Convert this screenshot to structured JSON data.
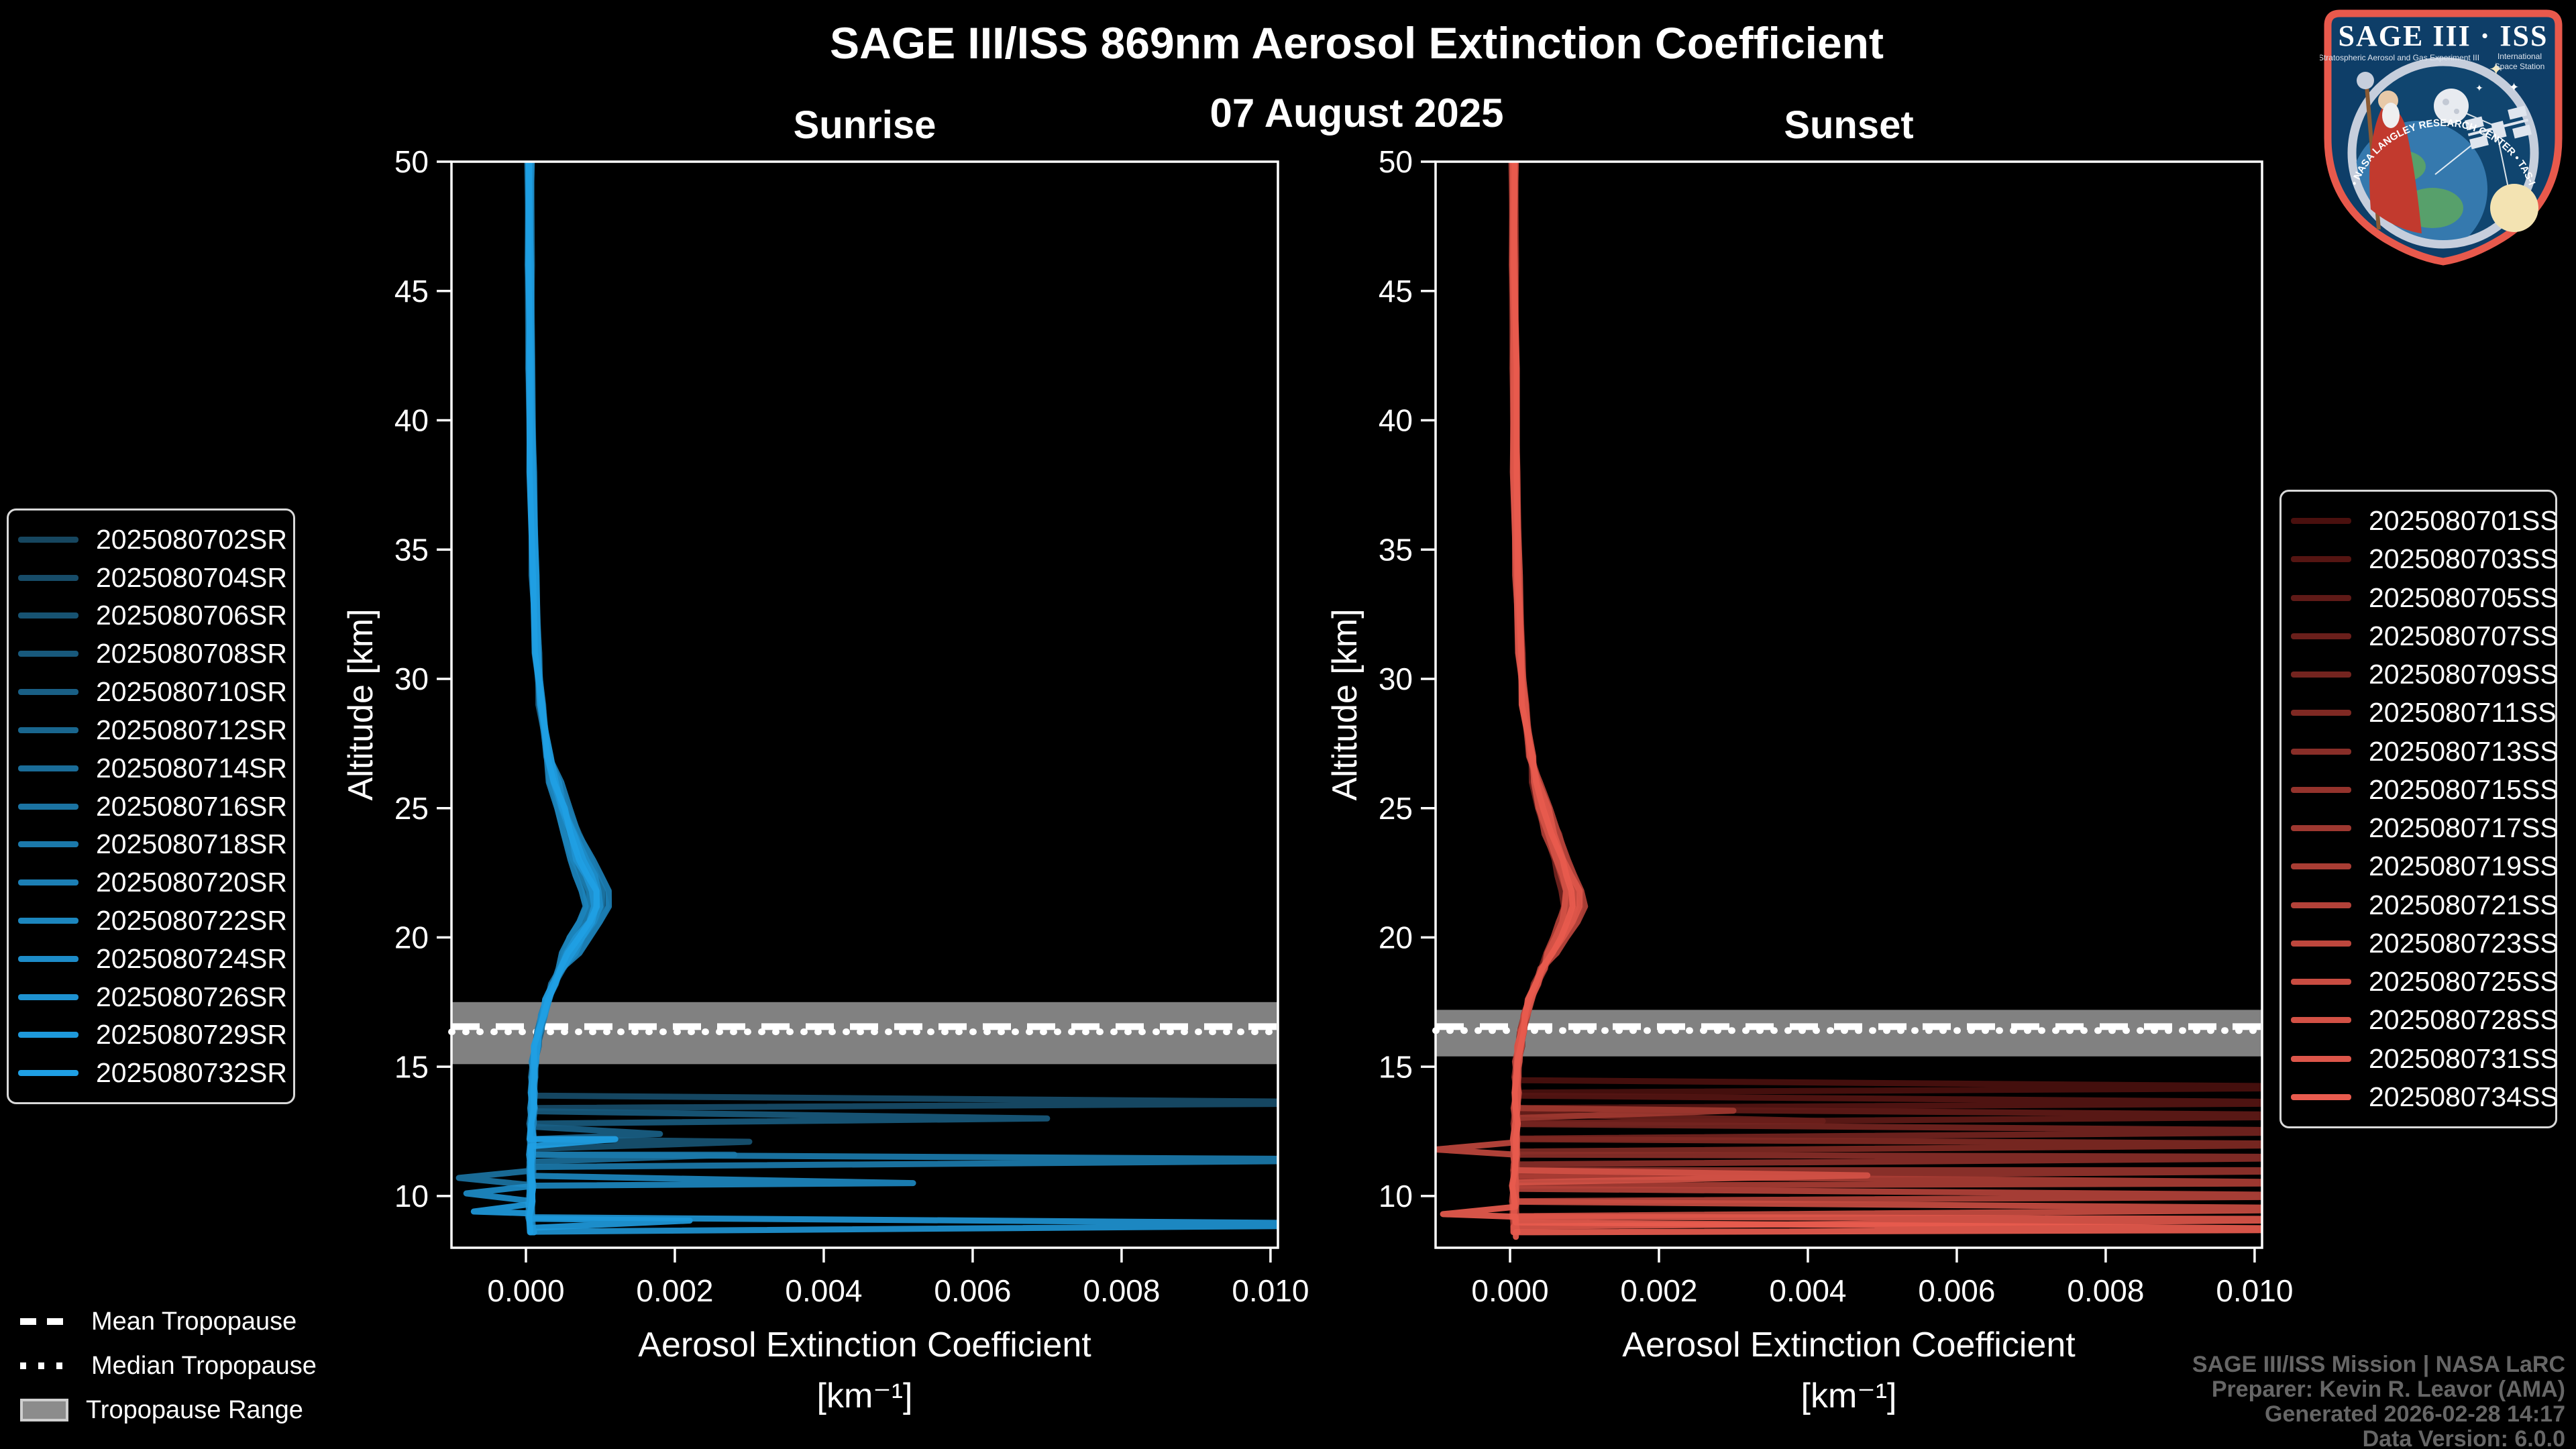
{
  "header": {
    "title": "SAGE III/ISS 869nm Aerosol Extinction Coefficient",
    "date": "07 August 2025"
  },
  "attribution": {
    "line1": "SAGE III/ISS Mission | NASA LaRC",
    "line2": "Preparer: Kevin R. Leavor (AMA)",
    "line3": "Generated 2026-02-28 14:17",
    "line4": "Data Version: 6.0.0"
  },
  "tropopause_legend": {
    "mean": "Mean Tropopause",
    "median": "Median Tropopause",
    "range": "Tropopause Range"
  },
  "logo": {
    "title": "SAGE III · ISS",
    "subtitle_left": "Stratospheric Aerosol and Gas Experiment III",
    "subtitle_right_1": "International",
    "subtitle_right_2": "Space Station",
    "ring_text": "BALL • NASA LANGLEY RESEARCH CENTER • TAS-I • ESA"
  },
  "chart_data": {
    "type": "line",
    "title": "SAGE III/ISS 869nm Aerosol Extinction Coefficient",
    "subtitle": "07 August 2025",
    "xlabel": "Aerosol Extinction Coefficient",
    "xlabel_units": "[km⁻¹]",
    "ylabel": "Altitude [km]",
    "xlim": [
      -0.001,
      0.0101
    ],
    "ylim": [
      8,
      50
    ],
    "xticks": {
      "values": [
        0,
        0.002,
        0.004,
        0.006,
        0.008,
        0.01
      ],
      "labels": [
        "0.000",
        "0.002",
        "0.004",
        "0.006",
        "0.008",
        "0.010"
      ]
    },
    "yticks": [
      50,
      45,
      40,
      35,
      30,
      25,
      20,
      15,
      10
    ],
    "grid": false,
    "background": "#000000",
    "tropopause_band_color": "#8c8c8c",
    "panels": [
      {
        "id": "sunrise",
        "title": "Sunrise",
        "tropopause": {
          "range": [
            15.1,
            17.5
          ],
          "mean": 16.55,
          "median": 16.35
        },
        "base_profile": [
          [
            50,
            5e-05
          ],
          [
            46,
            5e-05
          ],
          [
            42,
            6e-05
          ],
          [
            38,
            8e-05
          ],
          [
            34,
            0.00011
          ],
          [
            31,
            0.00015
          ],
          [
            29,
            0.0002
          ],
          [
            27,
            0.0003
          ],
          [
            26,
            0.00038
          ],
          [
            25,
            0.00048
          ],
          [
            24,
            0.0006
          ],
          [
            23,
            0.00072
          ],
          [
            22.4,
            0.00082
          ],
          [
            21.8,
            0.0009
          ],
          [
            21.2,
            0.00092
          ],
          [
            20.6,
            0.00084
          ],
          [
            20,
            0.0007
          ],
          [
            19.4,
            0.00058
          ],
          [
            18.8,
            0.00047
          ],
          [
            18.2,
            0.00037
          ],
          [
            17.6,
            0.00029
          ],
          [
            17,
            0.00023
          ],
          [
            16.4,
            0.00018
          ],
          [
            15.8,
            0.00014
          ],
          [
            15.2,
            0.00011
          ],
          [
            14.6,
            0.0001
          ],
          [
            14,
            9e-05
          ],
          [
            13.4,
            9e-05
          ],
          [
            12.8,
            8e-05
          ],
          [
            12.2,
            8e-05
          ],
          [
            11.6,
            7e-05
          ],
          [
            11,
            7e-05
          ],
          [
            10.4,
            7e-05
          ],
          [
            9.8,
            6e-05
          ],
          [
            9.2,
            6e-05
          ],
          [
            8.6,
            8e-05
          ]
        ],
        "series": [
          {
            "name": "2025080702SR",
            "color": "#16465F",
            "bulge": 1.0,
            "spikes": []
          },
          {
            "name": "2025080704SR",
            "color": "#174C69",
            "bulge": 0.92,
            "spikes": [
              [
                13.6,
                0.0125
              ]
            ]
          },
          {
            "name": "2025080706SR",
            "color": "#175372",
            "bulge": 1.08,
            "spikes": [
              [
                12.1,
                0.003
              ]
            ]
          },
          {
            "name": "2025080708SR",
            "color": "#18597C",
            "bulge": 0.96,
            "spikes": [
              [
                13.0,
                0.007
              ]
            ]
          },
          {
            "name": "2025080710SR",
            "color": "#195F85",
            "bulge": 1.18,
            "spikes": [
              [
                12.4,
                0.0018
              ]
            ]
          },
          {
            "name": "2025080712SR",
            "color": "#19668E",
            "bulge": 0.88,
            "spikes": []
          },
          {
            "name": "2025080714SR",
            "color": "#1A6C98",
            "bulge": 1.04,
            "spikes": [
              [
                11.6,
                0.0028
              ]
            ]
          },
          {
            "name": "2025080716SR",
            "color": "#1B73A2",
            "bulge": 1.12,
            "spikes": [
              [
                10.7,
                -0.0009
              ]
            ]
          },
          {
            "name": "2025080718SR",
            "color": "#1B79AB",
            "bulge": 0.94,
            "spikes": [
              [
                11.4,
                0.0125
              ]
            ]
          },
          {
            "name": "2025080720SR",
            "color": "#1C7FB5",
            "bulge": 1.22,
            "spikes": []
          },
          {
            "name": "2025080722SR",
            "color": "#1C86BE",
            "bulge": 0.84,
            "spikes": [
              [
                10.5,
                0.0052
              ]
            ]
          },
          {
            "name": "2025080724SR",
            "color": "#1D8CC8",
            "bulge": 1.1,
            "spikes": [
              [
                10.1,
                -0.0008
              ]
            ]
          },
          {
            "name": "2025080726SR",
            "color": "#1E92D1",
            "bulge": 0.98,
            "spikes": [
              [
                8.9,
                0.013
              ]
            ]
          },
          {
            "name": "2025080729SR",
            "color": "#1E99DB",
            "bulge": 1.06,
            "spikes": [
              [
                9.4,
                -0.0007
              ],
              [
                9.05,
                0.0022
              ]
            ]
          },
          {
            "name": "2025080732SR",
            "color": "#1F9FE4",
            "bulge": 1.02,
            "spikes": [
              [
                12.2,
                0.0012
              ]
            ]
          }
        ]
      },
      {
        "id": "sunset",
        "title": "Sunset",
        "tropopause": {
          "range": [
            15.4,
            17.2
          ],
          "mean": 16.55,
          "median": 16.4
        },
        "base_profile": [
          [
            50,
            5e-05
          ],
          [
            46,
            5e-05
          ],
          [
            42,
            6e-05
          ],
          [
            38,
            7e-05
          ],
          [
            34,
            0.0001
          ],
          [
            31,
            0.00014
          ],
          [
            29,
            0.00019
          ],
          [
            27,
            0.00028
          ],
          [
            26,
            0.00036
          ],
          [
            25,
            0.00045
          ],
          [
            24,
            0.00056
          ],
          [
            23,
            0.00068
          ],
          [
            22.4,
            0.00077
          ],
          [
            21.8,
            0.00084
          ],
          [
            21.2,
            0.00085
          ],
          [
            20.6,
            0.00078
          ],
          [
            20,
            0.00066
          ],
          [
            19.4,
            0.00055
          ],
          [
            18.8,
            0.00044
          ],
          [
            18.2,
            0.00035
          ],
          [
            17.6,
            0.00027
          ],
          [
            17,
            0.00021
          ],
          [
            16.4,
            0.00016
          ],
          [
            15.8,
            0.00013
          ],
          [
            15.2,
            0.0001
          ],
          [
            14.6,
            9e-05
          ],
          [
            14,
            9e-05
          ],
          [
            13.4,
            8e-05
          ],
          [
            12.8,
            8e-05
          ],
          [
            12.2,
            7e-05
          ],
          [
            11.6,
            7e-05
          ],
          [
            11,
            7e-05
          ],
          [
            10.4,
            6e-05
          ],
          [
            9.8,
            6e-05
          ],
          [
            9.2,
            6e-05
          ],
          [
            8.6,
            7e-05
          ]
        ],
        "series": [
          {
            "name": "2025080701SS",
            "color": "#4A100E",
            "bulge": 0.95,
            "spikes": [
              [
                14.2,
                0.0125
              ]
            ]
          },
          {
            "name": "2025080703SS",
            "color": "#551512",
            "bulge": 1.05,
            "spikes": [
              [
                13.6,
                0.012
              ]
            ]
          },
          {
            "name": "2025080705SS",
            "color": "#5F1A17",
            "bulge": 0.9,
            "spikes": [
              [
                13.1,
                0.0125
              ]
            ]
          },
          {
            "name": "2025080707SS",
            "color": "#6A1F1B",
            "bulge": 1.1,
            "spikes": [
              [
                12.9,
                0.0042
              ]
            ]
          },
          {
            "name": "2025080709SS",
            "color": "#74241F",
            "bulge": 0.85,
            "spikes": [
              [
                12.5,
                0.0125
              ]
            ]
          },
          {
            "name": "2025080711SS",
            "color": "#7F2923",
            "bulge": 1.0,
            "spikes": [
              [
                12.0,
                0.0122
              ]
            ]
          },
          {
            "name": "2025080713SS",
            "color": "#892E28",
            "bulge": 1.12,
            "spikes": [
              [
                11.5,
                0.0125
              ]
            ]
          },
          {
            "name": "2025080715SS",
            "color": "#94332C",
            "bulge": 0.92,
            "spikes": [
              [
                11.0,
                0.0125
              ]
            ]
          },
          {
            "name": "2025080717SS",
            "color": "#9E3830",
            "bulge": 1.06,
            "spikes": [
              [
                13.3,
                0.003
              ]
            ]
          },
          {
            "name": "2025080719SS",
            "color": "#A93D34",
            "bulge": 0.88,
            "spikes": [
              [
                10.5,
                0.0122
              ]
            ]
          },
          {
            "name": "2025080721SS",
            "color": "#B34239",
            "bulge": 1.15,
            "spikes": [
              [
                10.0,
                0.0125
              ]
            ]
          },
          {
            "name": "2025080723SS",
            "color": "#BE473D",
            "bulge": 0.96,
            "spikes": [
              [
                11.8,
                -0.001
              ]
            ]
          },
          {
            "name": "2025080725SS",
            "color": "#C84C41",
            "bulge": 1.02,
            "spikes": [
              [
                9.5,
                0.0125
              ]
            ]
          },
          {
            "name": "2025080728SS",
            "color": "#D35145",
            "bulge": 0.9,
            "spikes": [
              [
                10.8,
                0.0048
              ]
            ]
          },
          {
            "name": "2025080731SS",
            "color": "#DD564A",
            "bulge": 1.08,
            "spikes": [
              [
                9.1,
                0.0122
              ]
            ]
          },
          {
            "name": "2025080734SS",
            "color": "#E85B4E",
            "bulge": 1.0,
            "spikes": [
              [
                9.3,
                -0.0009
              ],
              [
                8.7,
                0.0125
              ]
            ]
          }
        ]
      }
    ]
  }
}
